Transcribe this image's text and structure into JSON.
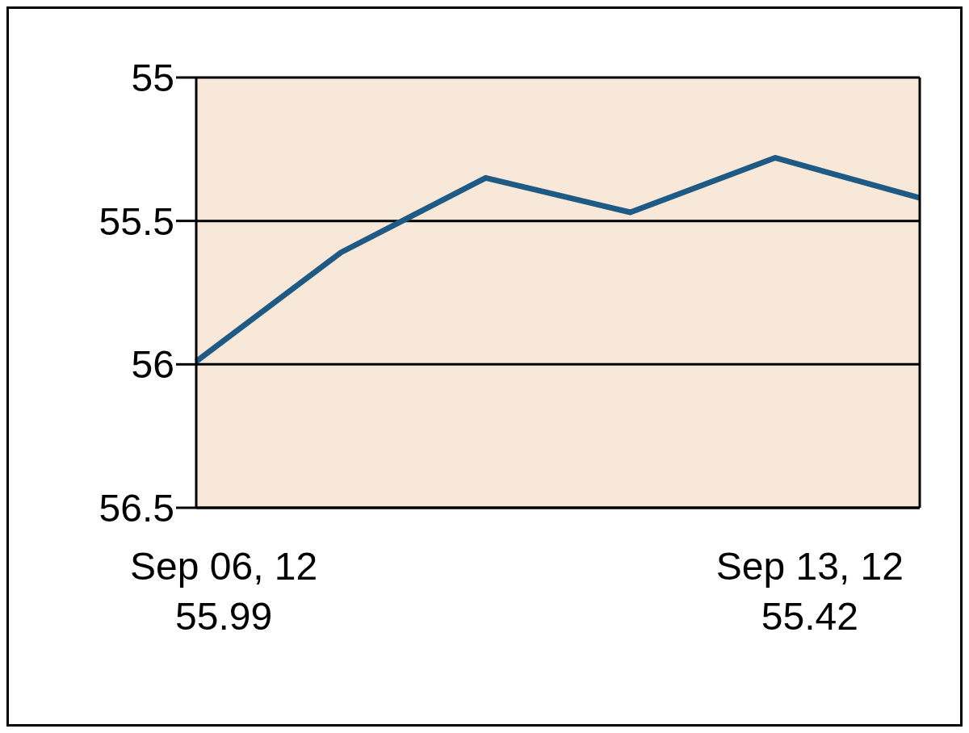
{
  "chart_data": {
    "type": "line",
    "categories": [
      null,
      null,
      null,
      null,
      null,
      null
    ],
    "series": [
      {
        "color": "#1f5a85",
        "values": [
          55.99,
          55.61,
          55.35,
          55.47,
          55.28,
          55.42
        ]
      }
    ],
    "ylim": [
      56.5,
      55
    ],
    "yticks": [
      55,
      55.5,
      56,
      56.5
    ],
    "grid": "y",
    "marker": "none",
    "legend": false,
    "tick_labels": "y",
    "annotations": [
      "Sep 06, 12",
      "55.99",
      "Sep 13, 12",
      "55.42"
    ]
  }
}
